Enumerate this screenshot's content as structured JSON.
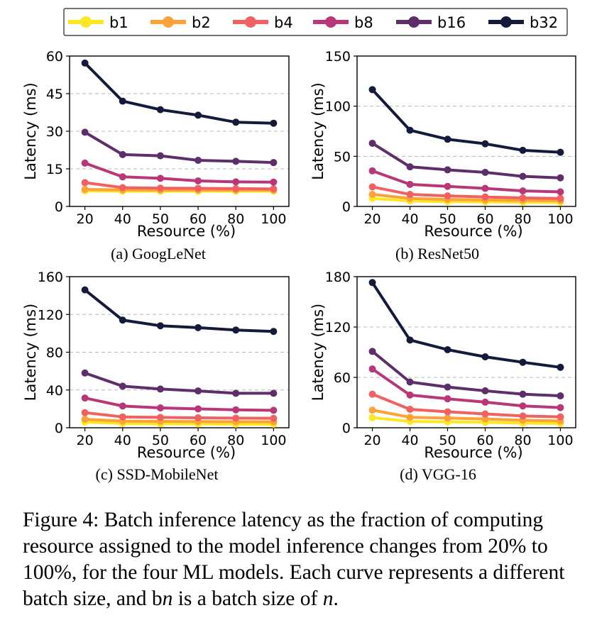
{
  "legend": {
    "items": [
      {
        "label": "b1",
        "color": "#fde725"
      },
      {
        "label": "b2",
        "color": "#fba238"
      },
      {
        "label": "b4",
        "color": "#f06161"
      },
      {
        "label": "b8",
        "color": "#b73779"
      },
      {
        "label": "b16",
        "color": "#5e2e6a"
      },
      {
        "label": "b32",
        "color": "#141b3a"
      }
    ],
    "placement": "top-center"
  },
  "chart_data": [
    {
      "type": "line",
      "subtitle": "(a) GoogLeNet",
      "xlabel": "Resource (%)",
      "ylabel": "Latency (ms)",
      "x": [
        "20",
        "40",
        "50",
        "60",
        "80",
        "100"
      ],
      "yticks": [
        0,
        15,
        30,
        45,
        60
      ],
      "ylim": [
        0,
        60
      ],
      "grid": "horizontal dashed",
      "series": [
        {
          "name": "b1",
          "values": [
            6.2,
            6.1,
            6.1,
            6.1,
            6.1,
            6.1
          ]
        },
        {
          "name": "b2",
          "values": [
            6.8,
            6.6,
            6.5,
            6.5,
            6.5,
            6.5
          ]
        },
        {
          "name": "b4",
          "values": [
            9.5,
            7.5,
            7.3,
            7.2,
            7.1,
            7.0
          ]
        },
        {
          "name": "b8",
          "values": [
            17.3,
            11.8,
            11.2,
            10.2,
            9.8,
            9.7
          ]
        },
        {
          "name": "b16",
          "values": [
            29.6,
            20.7,
            20.2,
            18.4,
            18.0,
            17.5
          ]
        },
        {
          "name": "b32",
          "values": [
            57.2,
            42.0,
            38.6,
            36.4,
            33.6,
            33.2
          ]
        }
      ]
    },
    {
      "type": "line",
      "subtitle": "(b) ResNet50",
      "xlabel": "Resource (%)",
      "ylabel": "Latency (ms)",
      "x": [
        "20",
        "40",
        "50",
        "60",
        "80",
        "100"
      ],
      "yticks": [
        0,
        50,
        100,
        150
      ],
      "ylim": [
        0,
        150
      ],
      "grid": "horizontal dashed",
      "series": [
        {
          "name": "b1",
          "values": [
            8.0,
            5.5,
            4.8,
            4.5,
            4.2,
            4.0
          ]
        },
        {
          "name": "b2",
          "values": [
            12.0,
            8.0,
            7.0,
            6.5,
            6.0,
            5.8
          ]
        },
        {
          "name": "b4",
          "values": [
            19.5,
            12.0,
            10.5,
            9.5,
            8.5,
            8.0
          ]
        },
        {
          "name": "b8",
          "values": [
            35.5,
            22.0,
            20.0,
            18.0,
            15.5,
            14.5
          ]
        },
        {
          "name": "b16",
          "values": [
            63.0,
            39.5,
            36.5,
            34.0,
            30.0,
            28.5
          ]
        },
        {
          "name": "b32",
          "values": [
            116.5,
            76.0,
            67.0,
            62.5,
            56.0,
            54.0
          ]
        }
      ]
    },
    {
      "type": "line",
      "subtitle": "(c) SSD-MobileNet",
      "xlabel": "Resource (%)",
      "ylabel": "Latency (ms)",
      "x": [
        "20",
        "40",
        "50",
        "60",
        "80",
        "100"
      ],
      "yticks": [
        0,
        40,
        80,
        120,
        160
      ],
      "ylim": [
        0,
        160
      ],
      "grid": "horizontal dashed",
      "series": [
        {
          "name": "b1",
          "values": [
            6.0,
            4.5,
            4.2,
            4.0,
            3.8,
            3.7
          ]
        },
        {
          "name": "b2",
          "values": [
            9.0,
            7.0,
            6.8,
            6.6,
            6.4,
            6.3
          ]
        },
        {
          "name": "b4",
          "values": [
            16.0,
            11.5,
            11.0,
            10.5,
            10.2,
            10.0
          ]
        },
        {
          "name": "b8",
          "values": [
            31.5,
            23.0,
            21.0,
            20.0,
            19.0,
            18.5
          ]
        },
        {
          "name": "b16",
          "values": [
            58.0,
            44.0,
            41.0,
            39.0,
            36.5,
            36.5
          ]
        },
        {
          "name": "b32",
          "values": [
            146.0,
            114.0,
            108.0,
            106.0,
            103.5,
            102.0
          ]
        }
      ]
    },
    {
      "type": "line",
      "subtitle": "(d) VGG-16",
      "xlabel": "Resource (%)",
      "ylabel": "Latency (ms)",
      "x": [
        "20",
        "40",
        "50",
        "60",
        "80",
        "100"
      ],
      "yticks": [
        0,
        60,
        120,
        180
      ],
      "ylim": [
        0,
        180
      ],
      "grid": "horizontal dashed",
      "series": [
        {
          "name": "b1",
          "values": [
            12.0,
            7.5,
            7.0,
            6.5,
            5.5,
            5.0
          ]
        },
        {
          "name": "b2",
          "values": [
            21.0,
            12.5,
            11.5,
            10.5,
            9.0,
            8.0
          ]
        },
        {
          "name": "b4",
          "values": [
            40.0,
            22.0,
            19.0,
            16.5,
            14.0,
            13.0
          ]
        },
        {
          "name": "b8",
          "values": [
            70.0,
            39.0,
            34.5,
            30.5,
            26.0,
            24.0
          ]
        },
        {
          "name": "b16",
          "values": [
            91.0,
            54.5,
            48.5,
            44.0,
            40.0,
            38.0
          ]
        },
        {
          "name": "b32",
          "values": [
            173.0,
            104.5,
            93.0,
            84.5,
            78.0,
            72.0
          ]
        }
      ]
    }
  ],
  "caption": {
    "prefix": "Figure 4: Batch inference latency as the fraction of computing resource assigned to the model inference changes from 20% to 100%, for the four ML models. Each curve represents a different batch size, and b",
    "n1": "n",
    "mid": " is a batch size of ",
    "n2": "n",
    "suffix": "."
  }
}
